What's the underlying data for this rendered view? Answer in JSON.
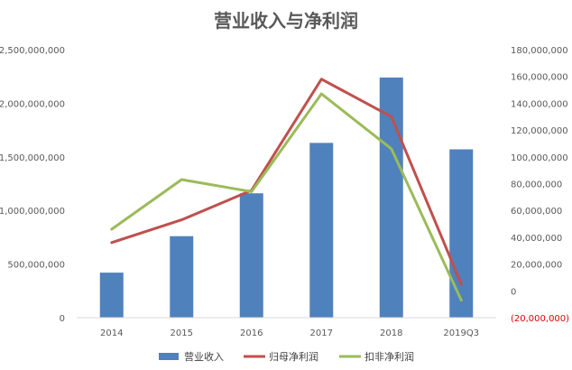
{
  "chart_data": {
    "type": "bar",
    "title": "营业收入与净利润",
    "categories": [
      "2014",
      "2015",
      "2016",
      "2017",
      "2018",
      "2019Q3"
    ],
    "series": [
      {
        "name": "营业收入",
        "type": "bar",
        "axis": "left",
        "color": "#4f81bd",
        "values": [
          420000000,
          760000000,
          1160000000,
          1630000000,
          2240000000,
          1570000000
        ]
      },
      {
        "name": "归母净利润",
        "type": "line",
        "axis": "right",
        "color": "#c0504d",
        "values": [
          36000000,
          53000000,
          75000000,
          158000000,
          130000000,
          5000000
        ]
      },
      {
        "name": "扣非净利润",
        "type": "line",
        "axis": "right",
        "color": "#9bbb59",
        "values": [
          46000000,
          83000000,
          74000000,
          147000000,
          106000000,
          -7000000
        ]
      }
    ],
    "y_left": {
      "min": 0,
      "max": 2500000000,
      "ticks": [
        "0",
        "500,000,000",
        "1,000,000,000",
        "1,500,000,000",
        "2,000,000,000",
        "2,500,000,000"
      ]
    },
    "y_right": {
      "min": -20000000,
      "max": 180000000,
      "ticks": [
        "(20,000,000)",
        "0",
        "20,000,000",
        "40,000,000",
        "60,000,000",
        "80,000,000",
        "100,000,000",
        "120,000,000",
        "140,000,000",
        "160,000,000",
        "180,000,000"
      ],
      "negative_color": "#e00000"
    },
    "grid": false,
    "legend_position": "bottom"
  }
}
